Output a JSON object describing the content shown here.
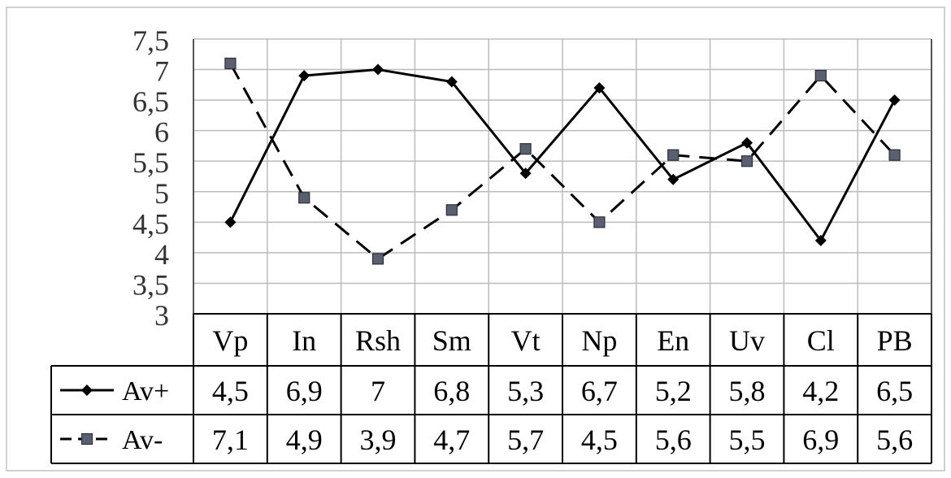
{
  "chart_data": {
    "type": "line",
    "categories": [
      "Vp",
      "In",
      "Rsh",
      "Sm",
      "Vt",
      "Np",
      "En",
      "Uv",
      "Cl",
      "PB"
    ],
    "series": [
      {
        "name": "Av+",
        "values": [
          4.5,
          6.9,
          7,
          6.8,
          5.3,
          6.7,
          5.2,
          5.8,
          4.2,
          6.5
        ],
        "display": [
          "4,5",
          "6,9",
          "7",
          "6,8",
          "5,3",
          "6,7",
          "5,2",
          "5,8",
          "4,2",
          "6,5"
        ],
        "marker": "diamond",
        "line_style": "solid"
      },
      {
        "name": "Av-",
        "values": [
          7.1,
          4.9,
          3.9,
          4.7,
          5.7,
          4.5,
          5.6,
          5.5,
          6.9,
          5.6
        ],
        "display": [
          "7,1",
          "4,9",
          "3,9",
          "4,7",
          "5,7",
          "4,5",
          "5,6",
          "5,5",
          "6,9",
          "5,6"
        ],
        "marker": "square",
        "line_style": "dashed"
      }
    ],
    "y_ticks": [
      "3",
      "3,5",
      "4",
      "4,5",
      "5",
      "5,5",
      "6",
      "6,5",
      "7",
      "7,5"
    ],
    "ylim": [
      3,
      7.5
    ],
    "grid": true,
    "legend": "data-table",
    "colors": {
      "line": "#000000",
      "square_marker": "#5a6070",
      "grid": "#bbbbbb",
      "table_border": "#000000"
    }
  }
}
